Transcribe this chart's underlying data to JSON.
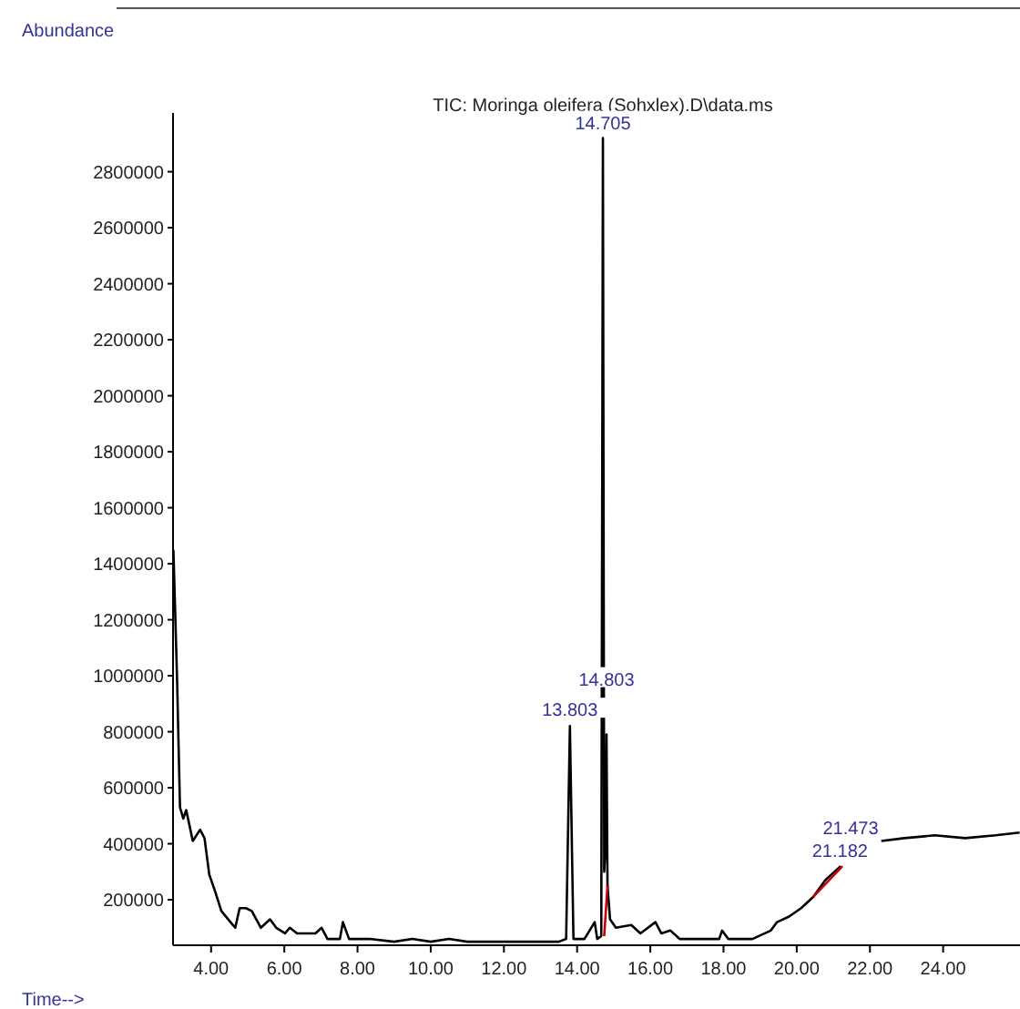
{
  "chart_data": {
    "type": "line",
    "title": "TIC: Moringa oleifera (Sohxlex).D\\data.ms",
    "xlabel": "Time-->",
    "ylabel": "Abundance",
    "xlim": [
      2.96,
      26.1
    ],
    "ylim": [
      37500,
      3010000
    ],
    "xticks": [
      {
        "value": 4,
        "label": "4.00"
      },
      {
        "value": 6,
        "label": "6.00"
      },
      {
        "value": 8,
        "label": "8.00"
      },
      {
        "value": 10,
        "label": "10.00"
      },
      {
        "value": 12,
        "label": "12.00"
      },
      {
        "value": 14,
        "label": "14.00"
      },
      {
        "value": 16,
        "label": "16.00"
      },
      {
        "value": 18,
        "label": "18.00"
      },
      {
        "value": 20,
        "label": "20.00"
      },
      {
        "value": 22,
        "label": "22.00"
      },
      {
        "value": 24,
        "label": "24.00"
      }
    ],
    "yticks": [
      200000,
      400000,
      600000,
      800000,
      1000000,
      1200000,
      1400000,
      1600000,
      1800000,
      2000000,
      2200000,
      2400000,
      2600000,
      2800000
    ],
    "grid": false,
    "marker": "none",
    "line_style": "solid",
    "series": [
      {
        "color": "#000000",
        "x": [
          2.97,
          3.07,
          3.15,
          3.24,
          3.32,
          3.5,
          3.7,
          3.82,
          3.95,
          4.11,
          4.28,
          4.53,
          4.66,
          4.78,
          4.95,
          5.11,
          5.36,
          5.61,
          5.78,
          6.02,
          6.15,
          6.35,
          6.52,
          6.85,
          7.02,
          7.18,
          7.52,
          7.6,
          7.77,
          8.33,
          9.0,
          9.5,
          10.0,
          10.5,
          11.0,
          11.5,
          12.0,
          12.5,
          13.0,
          13.5,
          13.7,
          13.803,
          13.9,
          14.2,
          14.48,
          14.55,
          14.66,
          14.705,
          14.74,
          14.78,
          14.803,
          14.83,
          14.9,
          15.06,
          15.48,
          15.73,
          16.14,
          16.3,
          16.55,
          16.8,
          17.88,
          17.96,
          18.13,
          18.79,
          19.29,
          19.46,
          19.79,
          20.12,
          20.45,
          20.78,
          21.2,
          21.6,
          22.31,
          22.94,
          23.77,
          24.6,
          25.43,
          26.09
        ],
        "values": [
          1450000,
          990000,
          530000,
          490000,
          520000,
          410000,
          450000,
          420000,
          290000,
          230000,
          160000,
          120000,
          100000,
          170000,
          170000,
          160000,
          100000,
          130000,
          100000,
          80000,
          100000,
          80000,
          80000,
          80000,
          100000,
          60000,
          60000,
          120000,
          60000,
          60000,
          50000,
          60000,
          50000,
          60000,
          50000,
          50000,
          50000,
          50000,
          50000,
          50000,
          60000,
          820000,
          60000,
          60000,
          120000,
          60000,
          70000,
          2920000,
          300000,
          400000,
          790000,
          250000,
          130000,
          100000,
          110000,
          80000,
          120000,
          80000,
          90000,
          60000,
          60000,
          90000,
          60000,
          60000,
          90000,
          120000,
          140000,
          170000,
          210000,
          270000,
          320000,
          null,
          410000,
          420000,
          430000,
          420000,
          430000,
          440000
        ]
      },
      {
        "color": "#cc0000",
        "x": [
          14.74,
          14.83,
          15.0,
          20.45,
          21.25
        ],
        "values": [
          70000,
          250000,
          null,
          210000,
          320000
        ]
      }
    ],
    "annotations": [
      {
        "text": "14.705",
        "x": 14.705,
        "y": 2920000
      },
      {
        "text": "13.803",
        "x": 13.803,
        "y": 824000
      },
      {
        "text": "14.803",
        "x": 14.803,
        "y": 790000
      },
      {
        "text": "21.182",
        "x": 21.182,
        "y": 320000
      },
      {
        "text": "21.473",
        "x": 21.473,
        "y": 330000
      }
    ]
  }
}
